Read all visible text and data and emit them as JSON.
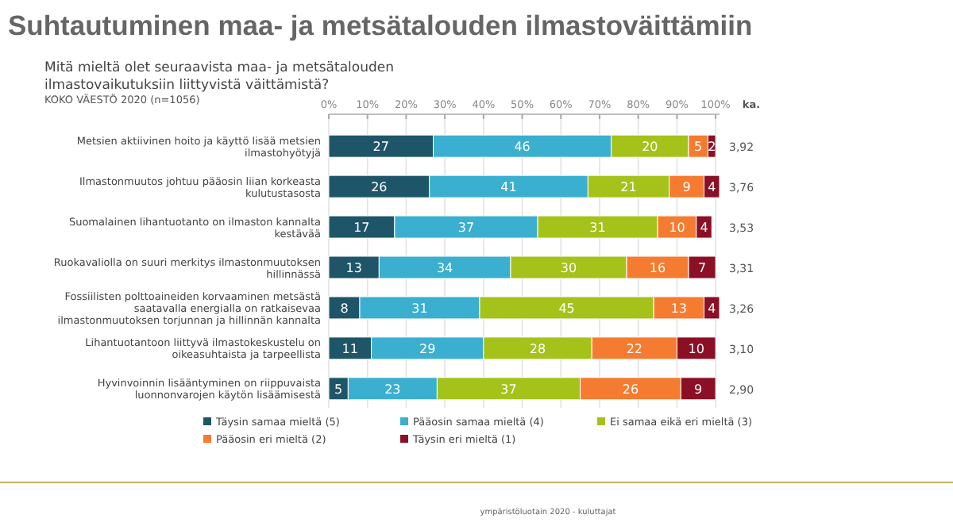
{
  "chart_data": {
    "type": "bar",
    "orientation": "horizontal",
    "stacked": true,
    "data_labels": true,
    "grid": "x",
    "legend": "bottom",
    "title": "Suhtautuminen maa- ja metsätalouden ilmastoväittämiin",
    "subtitle": "Mitä mieltä olet seuraavista maa- ja metsätalouden ilmastovaikutuksiin liittyvistä väittämistä?",
    "categories": [
      "Metsien aktiivinen hoito ja käyttö lisää metsien ilmastohyötyjä",
      "Ilmastonmuutos johtuu pääosin liian korkeasta kulutustasosta",
      "Suomalainen lihantuotanto on ilmaston kannalta kestävää",
      "Ruokavaliolla on suuri merkitys ilmastonmuutoksen hillinnässä",
      "Fossiilisten polttoaineiden korvaaminen metsästä saatavalla energialla on ratkaisevaa ilmastonmuutoksen torjunnan ja hillinnän kannalta",
      "Lihantuotantoon liittyvä ilmastokeskustelu on oikeasuhtaista ja tarpeellista",
      "Hyvinvoinnin lisääntyminen on riippuvaista luonnonvarojen käytön lisäämisestä"
    ],
    "series": [
      {
        "name": "Täysin samaa mieltä (5)",
        "color": "#1f5568",
        "values": [
          27,
          26,
          17,
          13,
          8,
          11,
          5
        ]
      },
      {
        "name": "Pääosin samaa mieltä (4)",
        "color": "#3aafd0",
        "values": [
          46,
          41,
          37,
          34,
          31,
          29,
          23
        ]
      },
      {
        "name": "Ei samaa eikä eri mieltä (3)",
        "color": "#a4c21a",
        "values": [
          20,
          21,
          31,
          30,
          45,
          28,
          37
        ]
      },
      {
        "name": "Pääosin eri mieltä (2)",
        "color": "#f47b30",
        "values": [
          5,
          9,
          10,
          16,
          13,
          22,
          26
        ]
      },
      {
        "name": "Täysin eri mieltä (1)",
        "color": "#8b0f25",
        "values": [
          2,
          4,
          4,
          7,
          4,
          10,
          9
        ]
      }
    ],
    "xlim": [
      0,
      101
    ],
    "xticks": [
      {
        "value": 0,
        "label": "0%"
      },
      {
        "value": 10,
        "label": "10%"
      },
      {
        "value": 20,
        "label": "20%"
      },
      {
        "value": 30,
        "label": "30%"
      },
      {
        "value": 40,
        "label": "40%"
      },
      {
        "value": 50,
        "label": "50%"
      },
      {
        "value": 60,
        "label": "60%"
      },
      {
        "value": 70,
        "label": "70%"
      },
      {
        "value": 80,
        "label": "80%"
      },
      {
        "value": 90,
        "label": "90%"
      },
      {
        "value": 100,
        "label": "100%"
      }
    ],
    "annotations": [
      "KOKO VÄESTÖ 2020 (n=1056)",
      "ka.",
      "3,92",
      "3,76",
      "3,53",
      "3,31",
      "3,26",
      "3,10",
      "2,90",
      "ympäristöluotain 2020 - kuluttajat"
    ]
  }
}
